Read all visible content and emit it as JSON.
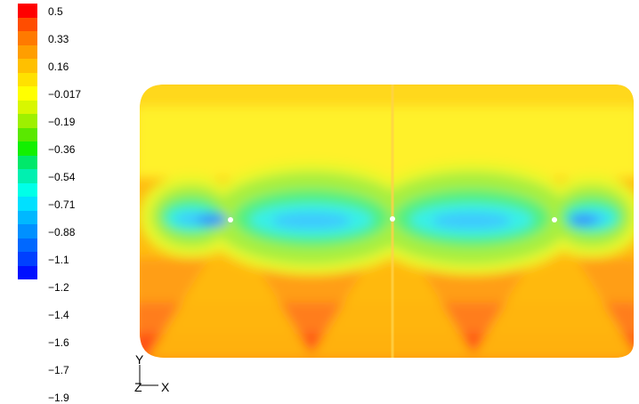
{
  "legend": {
    "ticks": [
      "0.5",
      "0.33",
      "0.16",
      "−0.017",
      "−0.19",
      "−0.36",
      "−0.54",
      "−0.71",
      "−0.88",
      "−1.1",
      "−1.2",
      "−1.4",
      "−1.6",
      "−1.7",
      "−1.9"
    ],
    "colors": [
      "#ff0000",
      "#ff4d00",
      "#ff7a00",
      "#ff9e00",
      "#ffc000",
      "#ffe100",
      "#ffff00",
      "#d8f700",
      "#9ef000",
      "#5ae800",
      "#12f000",
      "#00e86a",
      "#00f0b0",
      "#00ffe8",
      "#00e0ff",
      "#00b8ff",
      "#0090ff",
      "#0068ff",
      "#0040ff",
      "#0010ff"
    ]
  },
  "contour": {
    "levels_low_to_high": [
      "#3a8dff",
      "#3dc8ff",
      "#38f0e6",
      "#54ef7e",
      "#a7ef3f",
      "#eaf72a",
      "#fff12a",
      "#ffd81d",
      "#ffbb10",
      "#ff9e16",
      "#ff7d1e",
      "#ff5018"
    ]
  },
  "axes_triad": {
    "y": "Y",
    "z": "Z",
    "x": "X"
  }
}
